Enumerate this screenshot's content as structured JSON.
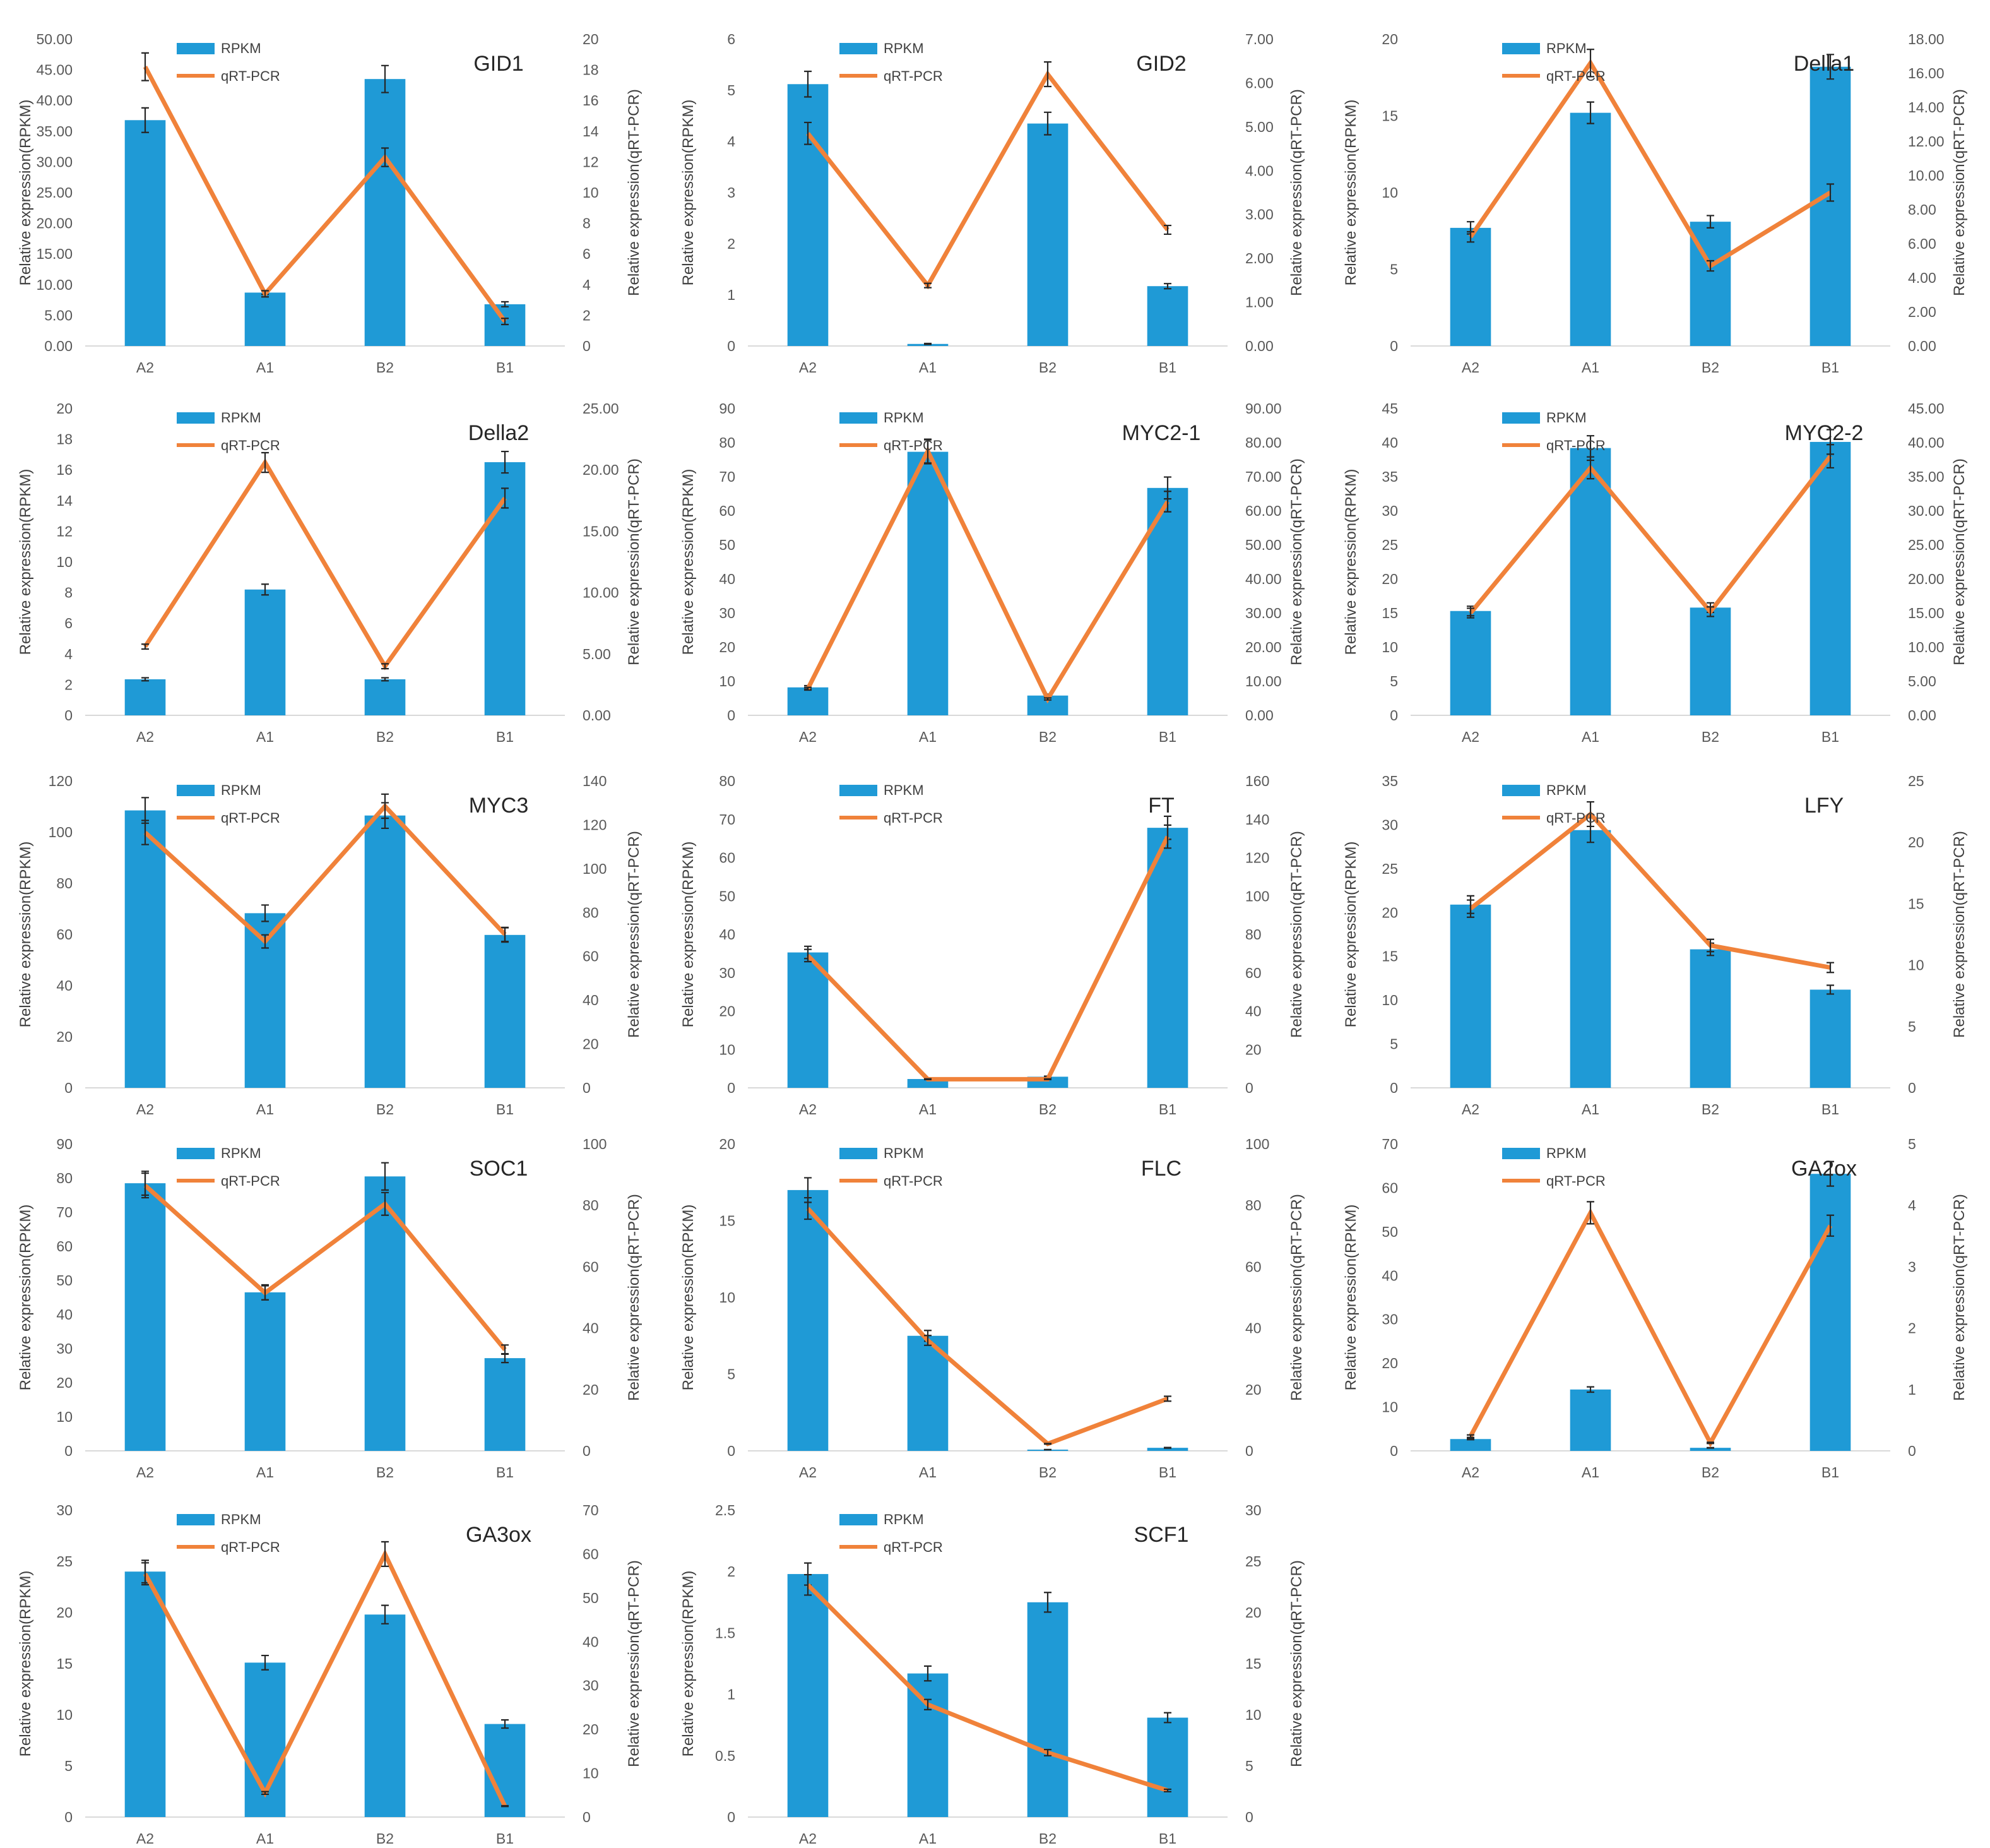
{
  "colors": {
    "bar": "#1f9ad6",
    "line": "#f0823a",
    "axis": "#d9d9d9",
    "text": "#404040"
  },
  "legend": {
    "bar_label": "RPKM",
    "line_label": "qRT-PCR"
  },
  "axis_titles": {
    "left": "Relative expression(RPKM)",
    "right": "Relative expression(qRT-PCR)"
  },
  "chart_data": [
    {
      "type": "bar",
      "title": "GID1",
      "categories": [
        "A2",
        "A1",
        "B2",
        "B1"
      ],
      "series": [
        {
          "name": "RPKM",
          "values": [
            36.8,
            8.7,
            43.5,
            6.8
          ],
          "errors": [
            2.0,
            0.3,
            2.2,
            0.4
          ]
        },
        {
          "name": "qRT-PCR",
          "type": "line",
          "values": [
            18.2,
            3.4,
            12.3,
            1.6
          ],
          "errors": [
            0.9,
            0.2,
            0.6,
            0.2
          ]
        }
      ],
      "left_ticks": [
        "0.00",
        "5.00",
        "10.00",
        "15.00",
        "20.00",
        "25.00",
        "30.00",
        "35.00",
        "40.00",
        "45.00",
        "50.00"
      ],
      "right_ticks": [
        "0",
        "2",
        "4",
        "6",
        "8",
        "10",
        "12",
        "14",
        "16",
        "18",
        "20"
      ],
      "ylim": [
        0,
        50
      ],
      "y2lim": [
        0,
        20
      ],
      "legend_position": "top-left",
      "grid": false
    },
    {
      "type": "bar",
      "title": "GID2",
      "categories": [
        "A2",
        "A1",
        "B2",
        "B1"
      ],
      "series": [
        {
          "name": "RPKM",
          "values": [
            5.12,
            0.04,
            4.35,
            1.17
          ],
          "errors": [
            0.25,
            0.01,
            0.22,
            0.05
          ]
        },
        {
          "name": "qRT-PCR",
          "type": "line",
          "values": [
            4.85,
            1.38,
            6.2,
            2.65
          ],
          "errors": [
            0.25,
            0.05,
            0.28,
            0.1
          ]
        }
      ],
      "left_ticks": [
        "0",
        "1",
        "2",
        "3",
        "4",
        "5",
        "6"
      ],
      "right_ticks": [
        "0.00",
        "1.00",
        "2.00",
        "3.00",
        "4.00",
        "5.00",
        "6.00",
        "7.00"
      ],
      "ylim": [
        0,
        6
      ],
      "y2lim": [
        0,
        7
      ],
      "legend_position": "top-left",
      "grid": false
    },
    {
      "type": "bar",
      "title": "Della1",
      "categories": [
        "A2",
        "A1",
        "B2",
        "B1"
      ],
      "series": [
        {
          "name": "RPKM",
          "values": [
            7.7,
            15.2,
            8.1,
            18.2
          ],
          "errors": [
            0.4,
            0.7,
            0.4,
            0.8
          ]
        },
        {
          "name": "qRT-PCR",
          "type": "line",
          "values": [
            6.4,
            16.6,
            4.7,
            9.0
          ],
          "errors": [
            0.3,
            0.8,
            0.3,
            0.5
          ]
        }
      ],
      "left_ticks": [
        "0",
        "5",
        "10",
        "15",
        "20"
      ],
      "right_ticks": [
        "0.00",
        "2.00",
        "4.00",
        "6.00",
        "8.00",
        "10.00",
        "12.00",
        "14.00",
        "16.00",
        "18.00"
      ],
      "ylim": [
        0,
        20
      ],
      "y2lim": [
        0,
        18
      ],
      "legend_position": "top-left",
      "grid": false
    },
    {
      "type": "bar",
      "title": "Della2",
      "categories": [
        "A2",
        "A1",
        "B2",
        "B1"
      ],
      "series": [
        {
          "name": "RPKM",
          "values": [
            2.35,
            8.2,
            2.35,
            16.5
          ],
          "errors": [
            0.1,
            0.35,
            0.1,
            0.7
          ]
        },
        {
          "name": "qRT-PCR",
          "type": "line",
          "values": [
            5.6,
            20.6,
            4.0,
            17.7
          ],
          "errors": [
            0.2,
            0.8,
            0.2,
            0.8
          ]
        }
      ],
      "left_ticks": [
        "0",
        "2",
        "4",
        "6",
        "8",
        "10",
        "12",
        "14",
        "16",
        "18",
        "20"
      ],
      "right_ticks": [
        "0.00",
        "5.00",
        "10.00",
        "15.00",
        "20.00",
        "25.00"
      ],
      "ylim": [
        0,
        20
      ],
      "y2lim": [
        0,
        25
      ],
      "legend_position": "top-left",
      "grid": false
    },
    {
      "type": "bar",
      "title": "MYC2-1",
      "categories": [
        "A2",
        "A1",
        "B2",
        "B1"
      ],
      "series": [
        {
          "name": "RPKM",
          "values": [
            8.2,
            77.3,
            5.8,
            66.7
          ],
          "errors": [
            0.5,
            3.5,
            0.4,
            3.2
          ]
        },
        {
          "name": "qRT-PCR",
          "type": "line",
          "values": [
            7.8,
            77.5,
            4.8,
            62.7
          ],
          "errors": [
            0.4,
            3.5,
            0.3,
            3.0
          ]
        }
      ],
      "left_ticks": [
        "0",
        "10",
        "20",
        "30",
        "40",
        "50",
        "60",
        "70",
        "80",
        "90"
      ],
      "right_ticks": [
        "0.00",
        "10.00",
        "20.00",
        "30.00",
        "40.00",
        "50.00",
        "60.00",
        "70.00",
        "80.00",
        "90.00"
      ],
      "ylim": [
        0,
        90
      ],
      "y2lim": [
        0,
        90
      ],
      "legend_position": "top-left",
      "grid": false
    },
    {
      "type": "bar",
      "title": "MYC2-2",
      "categories": [
        "A2",
        "A1",
        "B2",
        "B1"
      ],
      "series": [
        {
          "name": "RPKM",
          "values": [
            15.3,
            39.2,
            15.8,
            40.1
          ],
          "errors": [
            0.7,
            1.8,
            0.7,
            1.8
          ]
        },
        {
          "name": "qRT-PCR",
          "type": "line",
          "values": [
            15.0,
            36.3,
            15.2,
            38.0
          ],
          "errors": [
            0.7,
            1.6,
            0.7,
            1.7
          ]
        }
      ],
      "left_ticks": [
        "0",
        "5",
        "10",
        "15",
        "20",
        "25",
        "30",
        "35",
        "40",
        "45"
      ],
      "right_ticks": [
        "0.00",
        "5.00",
        "10.00",
        "15.00",
        "20.00",
        "25.00",
        "30.00",
        "35.00",
        "40.00",
        "45.00"
      ],
      "ylim": [
        0,
        45
      ],
      "y2lim": [
        0,
        45
      ],
      "legend_position": "top-left",
      "grid": false
    },
    {
      "type": "bar",
      "title": "MYC3",
      "categories": [
        "A2",
        "A1",
        "B2",
        "B1"
      ],
      "series": [
        {
          "name": "RPKM",
          "values": [
            108.5,
            68.3,
            106.5,
            59.8
          ],
          "errors": [
            5.0,
            3.2,
            5.0,
            2.8
          ]
        },
        {
          "name": "qRT-PCR",
          "type": "line",
          "values": [
            116.5,
            66.8,
            128.5,
            70.0
          ],
          "errors": [
            5.5,
            3.0,
            5.5,
            3.2
          ]
        }
      ],
      "left_ticks": [
        "0",
        "20",
        "40",
        "60",
        "80",
        "100",
        "120"
      ],
      "right_ticks": [
        "0",
        "20",
        "40",
        "60",
        "80",
        "100",
        "120",
        "140"
      ],
      "ylim": [
        0,
        120
      ],
      "y2lim": [
        0,
        140
      ],
      "legend_position": "top-left",
      "grid": false
    },
    {
      "type": "bar",
      "title": "FT",
      "categories": [
        "A2",
        "A1",
        "B2",
        "B1"
      ],
      "series": [
        {
          "name": "RPKM",
          "values": [
            35.3,
            2.3,
            2.9,
            67.8
          ],
          "errors": [
            1.6,
            0.1,
            0.15,
            3.0
          ]
        },
        {
          "name": "qRT-PCR",
          "type": "line",
          "values": [
            69.0,
            4.5,
            4.5,
            131.0
          ],
          "errors": [
            3.2,
            0.2,
            0.2,
            6.0
          ]
        }
      ],
      "left_ticks": [
        "0",
        "10",
        "20",
        "30",
        "40",
        "50",
        "60",
        "70",
        "80"
      ],
      "right_ticks": [
        "0",
        "20",
        "40",
        "60",
        "80",
        "100",
        "120",
        "140",
        "160"
      ],
      "ylim": [
        0,
        80
      ],
      "y2lim": [
        0,
        160
      ],
      "legend_position": "top-left",
      "grid": false
    },
    {
      "type": "bar",
      "title": "LFY",
      "categories": [
        "A2",
        "A1",
        "B2",
        "B1"
      ],
      "series": [
        {
          "name": "RPKM",
          "values": [
            20.9,
            29.4,
            15.8,
            11.2
          ],
          "errors": [
            1.0,
            1.4,
            0.7,
            0.5
          ]
        },
        {
          "name": "qRT-PCR",
          "type": "line",
          "values": [
            14.6,
            22.3,
            11.6,
            9.8
          ],
          "errors": [
            0.7,
            1.0,
            0.5,
            0.4
          ]
        }
      ],
      "left_ticks": [
        "0",
        "5",
        "10",
        "15",
        "20",
        "25",
        "30",
        "35"
      ],
      "right_ticks": [
        "0",
        "5",
        "10",
        "15",
        "20",
        "25"
      ],
      "ylim": [
        0,
        35
      ],
      "y2lim": [
        0,
        25
      ],
      "legend_position": "top-left",
      "grid": false
    },
    {
      "type": "bar",
      "title": "SOC1",
      "categories": [
        "A2",
        "A1",
        "B2",
        "B1"
      ],
      "series": [
        {
          "name": "RPKM",
          "values": [
            78.5,
            46.5,
            80.5,
            27.2
          ],
          "errors": [
            3.5,
            2.2,
            4.0,
            1.3
          ]
        },
        {
          "name": "qRT-PCR",
          "type": "line",
          "values": [
            86.5,
            51.5,
            80.5,
            33.0
          ],
          "errors": [
            4.0,
            2.3,
            3.7,
            1.5
          ]
        }
      ],
      "left_ticks": [
        "0",
        "10",
        "20",
        "30",
        "40",
        "50",
        "60",
        "70",
        "80",
        "90"
      ],
      "right_ticks": [
        "0",
        "20",
        "40",
        "60",
        "80",
        "100"
      ],
      "ylim": [
        0,
        90
      ],
      "y2lim": [
        0,
        100
      ],
      "legend_position": "top-left",
      "grid": false
    },
    {
      "type": "bar",
      "title": "FLC",
      "categories": [
        "A2",
        "A1",
        "B2",
        "B1"
      ],
      "series": [
        {
          "name": "RPKM",
          "values": [
            17.0,
            7.5,
            0.08,
            0.2
          ],
          "errors": [
            0.8,
            0.35,
            0.01,
            0.02
          ]
        },
        {
          "name": "qRT-PCR",
          "type": "line",
          "values": [
            79.0,
            36.0,
            2.3,
            17.0
          ],
          "errors": [
            3.5,
            1.6,
            0.1,
            0.8
          ]
        }
      ],
      "left_ticks": [
        "0",
        "5",
        "10",
        "15",
        "20"
      ],
      "right_ticks": [
        "0",
        "20",
        "40",
        "60",
        "80",
        "100"
      ],
      "ylim": [
        0,
        20
      ],
      "y2lim": [
        0,
        100
      ],
      "legend_position": "top-left",
      "grid": false
    },
    {
      "type": "bar",
      "title": "GA2ox",
      "categories": [
        "A2",
        "A1",
        "B2",
        "B1"
      ],
      "series": [
        {
          "name": "RPKM",
          "values": [
            2.7,
            14.0,
            0.7,
            63.2
          ],
          "errors": [
            0.15,
            0.6,
            0.05,
            2.8
          ]
        },
        {
          "name": "qRT-PCR",
          "type": "line",
          "values": [
            0.24,
            3.88,
            0.13,
            3.67
          ],
          "errors": [
            0.02,
            0.18,
            0.01,
            0.17
          ]
        }
      ],
      "left_ticks": [
        "0",
        "10",
        "20",
        "30",
        "40",
        "50",
        "60",
        "70"
      ],
      "right_ticks": [
        "0",
        "1",
        "2",
        "3",
        "4",
        "5"
      ],
      "ylim": [
        0,
        70
      ],
      "y2lim": [
        0,
        5
      ],
      "legend_position": "top-left",
      "grid": false
    },
    {
      "type": "bar",
      "title": "GA3ox",
      "categories": [
        "A2",
        "A1",
        "B2",
        "B1"
      ],
      "series": [
        {
          "name": "RPKM",
          "values": [
            24.0,
            15.1,
            19.8,
            9.1
          ],
          "errors": [
            1.1,
            0.7,
            0.9,
            0.4
          ]
        },
        {
          "name": "qRT-PCR",
          "type": "line",
          "values": [
            55.5,
            5.5,
            60.0,
            2.5
          ],
          "errors": [
            2.5,
            0.3,
            2.8,
            0.1
          ]
        }
      ],
      "left_ticks": [
        "0",
        "5",
        "10",
        "15",
        "20",
        "25",
        "30"
      ],
      "right_ticks": [
        "0",
        "10",
        "20",
        "30",
        "40",
        "50",
        "60",
        "70"
      ],
      "ylim": [
        0,
        30
      ],
      "y2lim": [
        0,
        70
      ],
      "legend_position": "top-left",
      "grid": false
    },
    {
      "type": "bar",
      "title": "SCF1",
      "categories": [
        "A2",
        "A1",
        "B2",
        "B1"
      ],
      "series": [
        {
          "name": "RPKM",
          "values": [
            1.98,
            1.17,
            1.75,
            0.81
          ],
          "errors": [
            0.09,
            0.06,
            0.08,
            0.04
          ]
        },
        {
          "name": "qRT-PCR",
          "type": "line",
          "values": [
            22.7,
            11.0,
            6.3,
            2.6
          ],
          "errors": [
            1.0,
            0.5,
            0.3,
            0.12
          ]
        }
      ],
      "left_ticks": [
        "0",
        "0.5",
        "1",
        "1.5",
        "2",
        "2.5"
      ],
      "right_ticks": [
        "0",
        "5",
        "10",
        "15",
        "20",
        "25",
        "30"
      ],
      "ylim": [
        0,
        2.5
      ],
      "y2lim": [
        0,
        30
      ],
      "legend_position": "top-left",
      "grid": false
    }
  ]
}
